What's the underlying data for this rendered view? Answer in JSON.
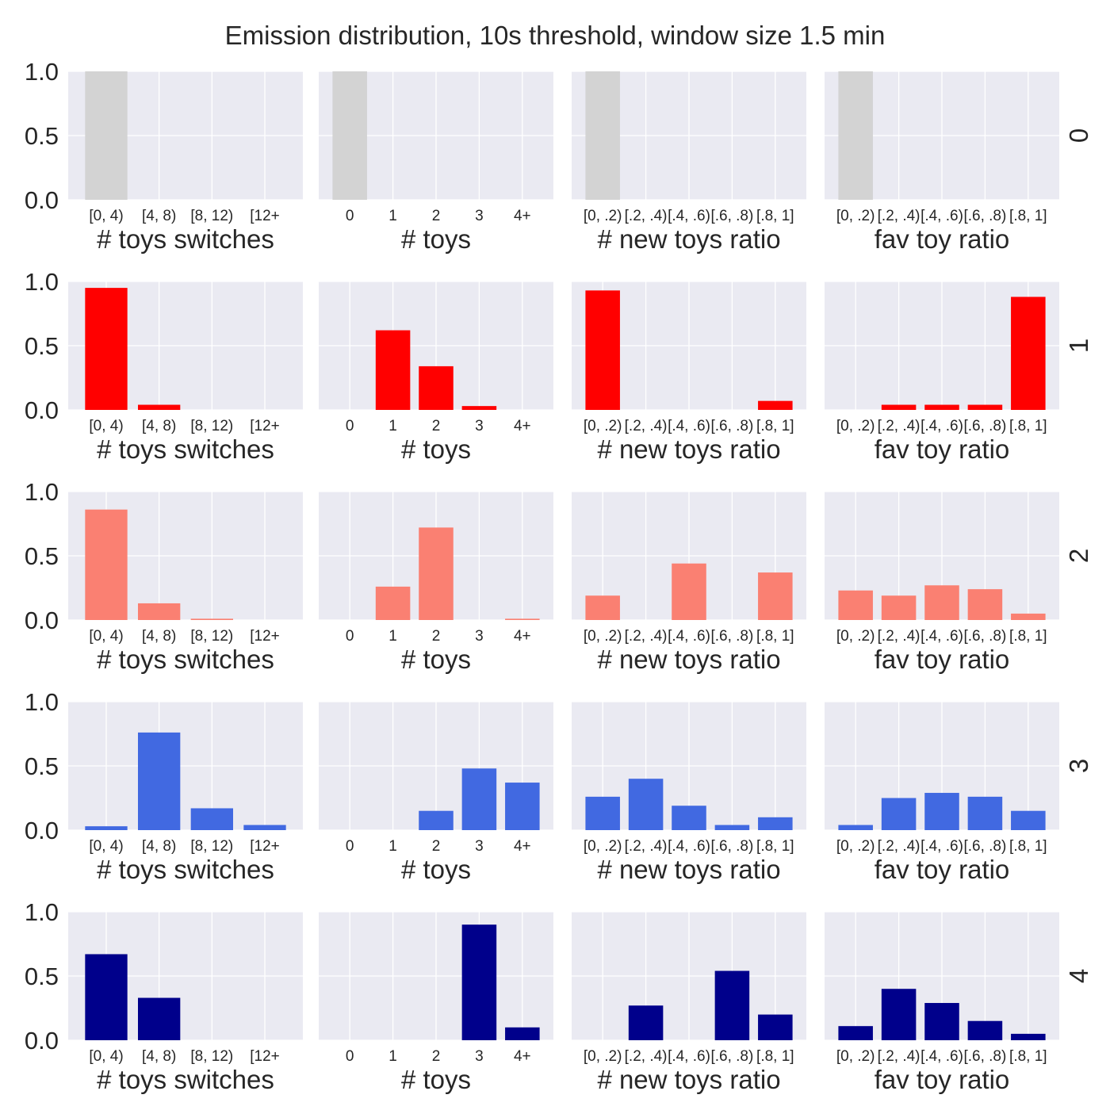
{
  "title": "Emission distribution, 10s threshold, window size 1.5 min",
  "chart_data": {
    "type": "bar",
    "title": "Emission distribution, 10s threshold, window size 1.5 min",
    "ylim": [
      0,
      1.0
    ],
    "yticks": [
      "0.0",
      "0.5",
      "1.0"
    ],
    "grid": true,
    "columns": [
      {
        "xlabel": "# toys switches",
        "categories": [
          "[0, 4)",
          "[4, 8)",
          "[8, 12)",
          "[12+"
        ]
      },
      {
        "xlabel": "# toys",
        "categories": [
          "0",
          "1",
          "2",
          "3",
          "4+"
        ]
      },
      {
        "xlabel": "# new toys ratio",
        "categories": [
          "[0, .2)",
          "[.2, .4)",
          "[.4, .6)",
          "[.6, .8)",
          "[.8, 1]"
        ]
      },
      {
        "xlabel": "fav toy ratio",
        "categories": [
          "[0, .2)",
          "[.2, .4)",
          "[.4, .6)",
          "[.6, .8)",
          "[.8, 1]"
        ]
      }
    ],
    "rows": [
      {
        "label": "0",
        "color": "#d3d3d3",
        "values": [
          [
            1.0,
            0,
            0,
            0
          ],
          [
            1.0,
            0,
            0,
            0,
            0
          ],
          [
            1.0,
            0,
            0,
            0,
            0
          ],
          [
            1.0,
            0,
            0,
            0,
            0
          ]
        ]
      },
      {
        "label": "1",
        "color": "#ff0000",
        "values": [
          [
            0.95,
            0.04,
            0,
            0
          ],
          [
            0,
            0.62,
            0.34,
            0.03,
            0
          ],
          [
            0.93,
            0,
            0,
            0,
            0.07
          ],
          [
            0,
            0.04,
            0.04,
            0.04,
            0.88
          ]
        ]
      },
      {
        "label": "2",
        "color": "#fa8072",
        "values": [
          [
            0.86,
            0.13,
            0.01,
            0
          ],
          [
            0,
            0.26,
            0.72,
            0,
            0.01
          ],
          [
            0.19,
            0,
            0.44,
            0,
            0.37
          ],
          [
            0.23,
            0.19,
            0.27,
            0.24,
            0.05
          ]
        ]
      },
      {
        "label": "3",
        "color": "#4169e1",
        "values": [
          [
            0.03,
            0.76,
            0.17,
            0.04
          ],
          [
            0,
            0,
            0.15,
            0.48,
            0.37
          ],
          [
            0.26,
            0.4,
            0.19,
            0.04,
            0.1
          ],
          [
            0.04,
            0.25,
            0.29,
            0.26,
            0.15
          ]
        ]
      },
      {
        "label": "4",
        "color": "#00008b",
        "values": [
          [
            0.67,
            0.33,
            0,
            0
          ],
          [
            0,
            0,
            0,
            0.9,
            0.1
          ],
          [
            0,
            0.27,
            0,
            0.54,
            0.2
          ],
          [
            0.11,
            0.4,
            0.29,
            0.15,
            0.05
          ]
        ]
      }
    ]
  }
}
